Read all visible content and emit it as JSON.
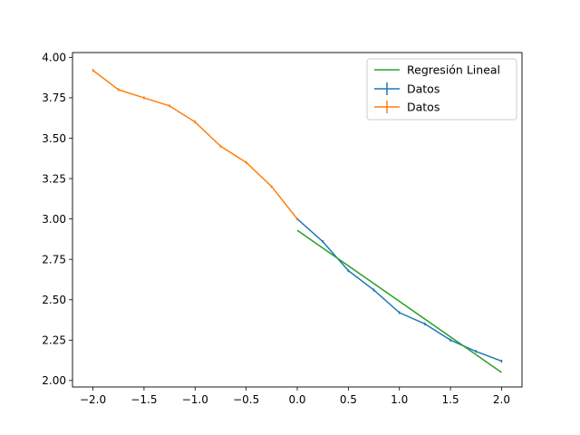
{
  "chart_data": {
    "type": "line",
    "title": "",
    "xlabel": "",
    "ylabel": "",
    "xlim": [
      -2.2,
      2.2
    ],
    "ylim": [
      1.96,
      4.03
    ],
    "grid": false,
    "legend_position": "top-right",
    "x_ticks": [
      -2.0,
      -1.5,
      -1.0,
      -0.5,
      0.0,
      0.5,
      1.0,
      1.5,
      2.0
    ],
    "x_tick_labels": [
      "−2.0",
      "−1.5",
      "−1.0",
      "−0.5",
      "0.0",
      "0.5",
      "1.0",
      "1.5",
      "2.0"
    ],
    "y_ticks": [
      2.0,
      2.25,
      2.5,
      2.75,
      3.0,
      3.25,
      3.5,
      3.75,
      4.0
    ],
    "y_tick_labels": [
      "2.00",
      "2.25",
      "2.50",
      "2.75",
      "3.00",
      "3.25",
      "3.50",
      "3.75",
      "4.00"
    ],
    "series": [
      {
        "name": "Regresión Lineal",
        "kind": "line",
        "color": "#2ca02c",
        "x": [
          0.0,
          2.0
        ],
        "y": [
          2.93,
          2.05
        ]
      },
      {
        "name": "Datos",
        "kind": "errorbar",
        "color": "#1f77b4",
        "x": [
          0.0,
          0.25,
          0.5,
          0.75,
          1.0,
          1.25,
          1.5,
          1.75,
          2.0
        ],
        "y": [
          3.0,
          2.86,
          2.68,
          2.56,
          2.42,
          2.35,
          2.25,
          2.18,
          2.12
        ],
        "yerr": 0.005
      },
      {
        "name": "Datos",
        "kind": "errorbar",
        "color": "#ff7f0e",
        "x": [
          -2.0,
          -1.75,
          -1.5,
          -1.25,
          -1.0,
          -0.75,
          -0.5,
          -0.25,
          0.0
        ],
        "y": [
          3.92,
          3.8,
          3.75,
          3.7,
          3.6,
          3.45,
          3.35,
          3.2,
          3.0
        ],
        "yerr": 0.005
      }
    ]
  }
}
